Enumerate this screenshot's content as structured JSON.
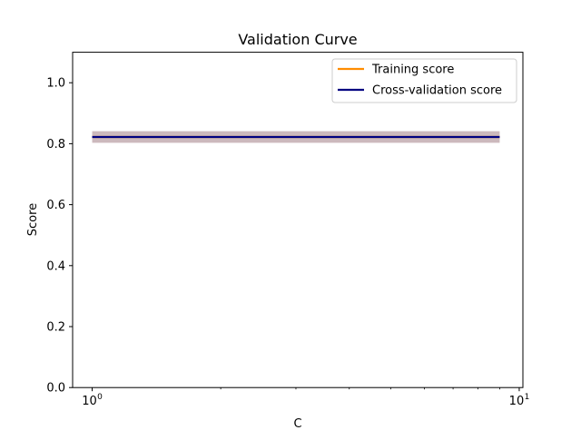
{
  "chart_data": {
    "type": "line",
    "title": "Validation Curve",
    "xlabel": "C",
    "ylabel": "Score",
    "xscale": "log",
    "xlim": [
      0.9,
      10.2
    ],
    "ylim": [
      0.0,
      1.1
    ],
    "yticks": [
      "0.0",
      "0.2",
      "0.4",
      "0.6",
      "0.8",
      "1.0"
    ],
    "yticks_values": [
      0.0,
      0.2,
      0.4,
      0.6,
      0.8,
      1.0
    ],
    "xticks": [
      {
        "base": "10",
        "exp": "0",
        "value": 1
      },
      {
        "base": "10",
        "exp": "1",
        "value": 10
      }
    ],
    "x_minor_ticks": [
      2,
      3,
      4,
      5,
      6,
      7,
      8,
      9
    ],
    "grid": false,
    "legend": "top-right",
    "series": [
      {
        "name": "Training score",
        "color": "#ff8c00",
        "x": [
          1,
          9
        ],
        "y": [
          0.822,
          0.822
        ],
        "band": [
          0.803,
          0.841
        ]
      },
      {
        "name": "Cross-validation score",
        "color": "#000080",
        "x": [
          1,
          9
        ],
        "y": [
          0.822,
          0.822
        ],
        "band": [
          0.803,
          0.841
        ]
      }
    ]
  }
}
